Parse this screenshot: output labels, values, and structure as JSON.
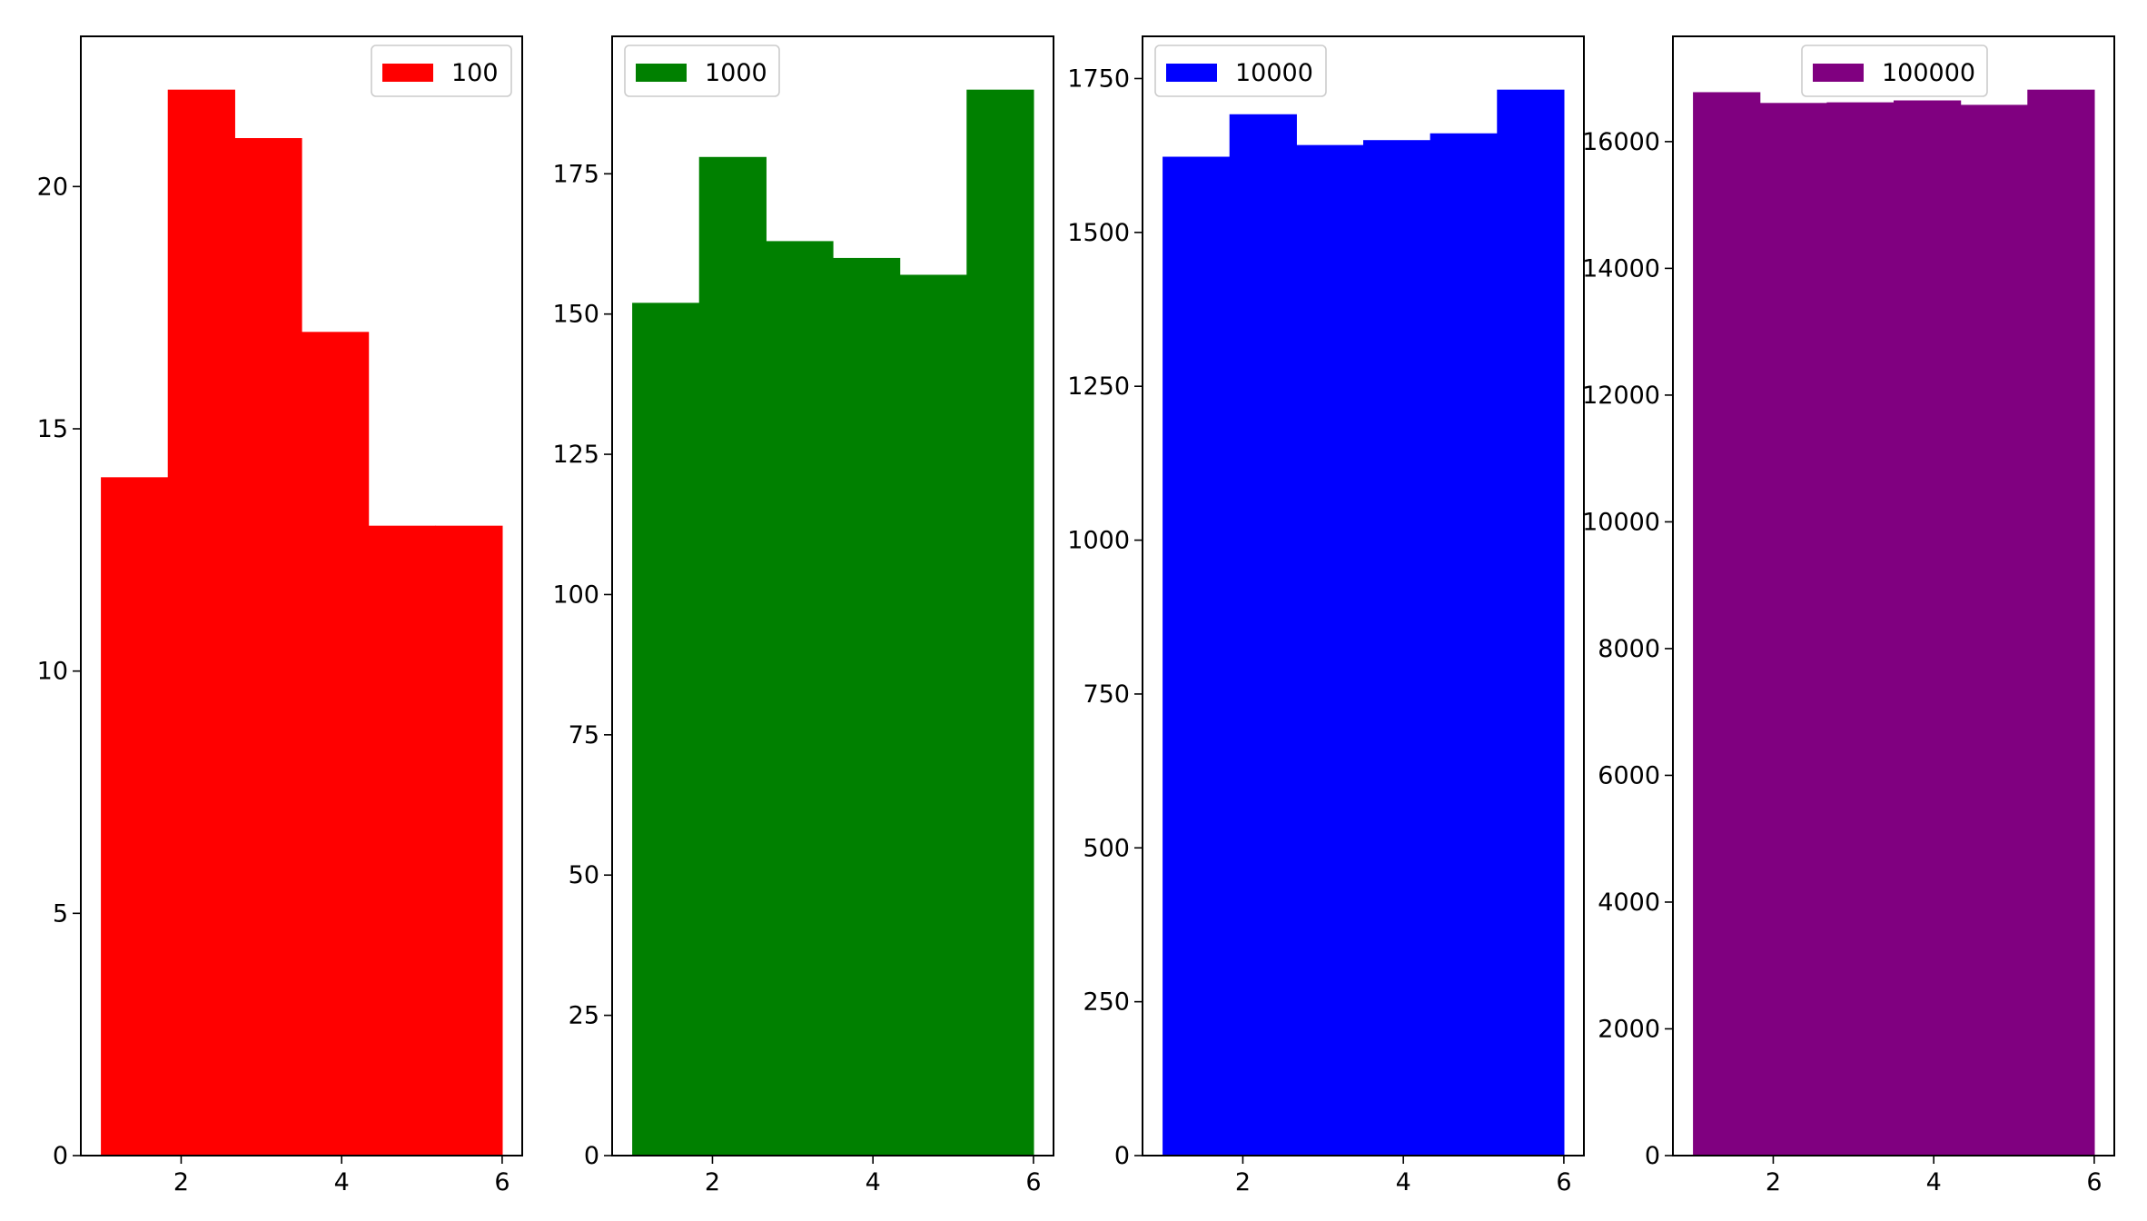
{
  "chart_data": [
    {
      "type": "bar",
      "bin_edges": [
        1,
        1.8333,
        2.6667,
        3.5,
        4.3333,
        5.1667,
        6
      ],
      "values": [
        14,
        22,
        21,
        17,
        13,
        13
      ],
      "color": "#ff0000",
      "legend_label": "100",
      "legend_placement": "upper right",
      "xlim": [
        0.75,
        6.25
      ],
      "ylim": [
        0,
        23.1
      ],
      "xticks": [
        2,
        4,
        6
      ],
      "yticks": [
        0,
        5,
        10,
        15,
        20
      ],
      "xlabel": "",
      "ylabel": "",
      "grid": false
    },
    {
      "type": "bar",
      "bin_edges": [
        1,
        1.8333,
        2.6667,
        3.5,
        4.3333,
        5.1667,
        6
      ],
      "values": [
        152,
        178,
        163,
        160,
        157,
        190
      ],
      "color": "#008000",
      "legend_label": "1000",
      "legend_placement": "upper left",
      "xlim": [
        0.75,
        6.25
      ],
      "ylim": [
        0,
        199.5
      ],
      "xticks": [
        2,
        4,
        6
      ],
      "yticks": [
        0,
        25,
        50,
        75,
        100,
        125,
        150,
        175
      ],
      "xlabel": "",
      "ylabel": "",
      "grid": false
    },
    {
      "type": "bar",
      "bin_edges": [
        1,
        1.8333,
        2.6667,
        3.5,
        4.3333,
        5.1667,
        6
      ],
      "values": [
        1623,
        1692,
        1642,
        1650,
        1661,
        1732
      ],
      "color": "#0000ff",
      "legend_label": "10000",
      "legend_placement": "upper left",
      "xlim": [
        0.75,
        6.25
      ],
      "ylim": [
        0,
        1818.6
      ],
      "xticks": [
        2,
        4,
        6
      ],
      "yticks": [
        0,
        250,
        500,
        750,
        1000,
        1250,
        1500,
        1750
      ],
      "xlabel": "",
      "ylabel": "",
      "grid": false
    },
    {
      "type": "bar",
      "bin_edges": [
        1,
        1.8333,
        2.6667,
        3.5,
        4.3333,
        5.1667,
        6
      ],
      "values": [
        16780,
        16610,
        16620,
        16650,
        16580,
        16820
      ],
      "color": "#800080",
      "legend_label": "100000",
      "legend_placement": "upper center",
      "xlim": [
        0.75,
        6.25
      ],
      "ylim": [
        0,
        17661
      ],
      "xticks": [
        2,
        4,
        6
      ],
      "yticks": [
        0,
        2000,
        4000,
        6000,
        8000,
        10000,
        12000,
        14000,
        16000
      ],
      "xlabel": "",
      "ylabel": "",
      "grid": false
    }
  ]
}
